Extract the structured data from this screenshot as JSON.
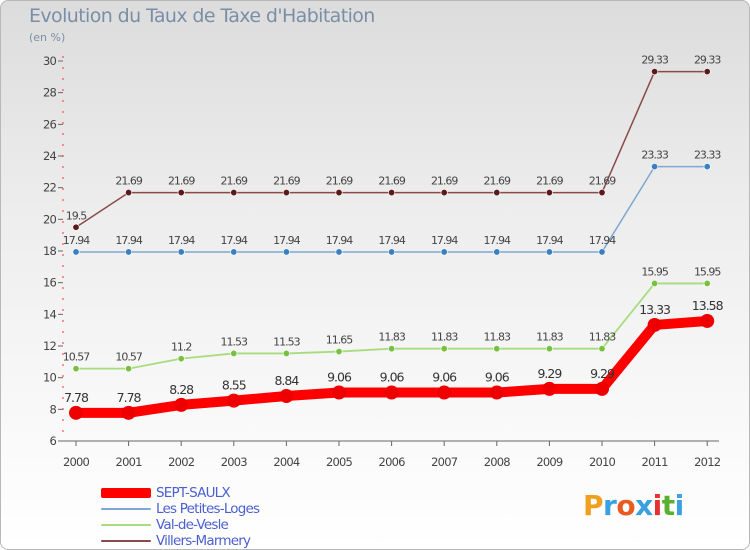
{
  "title": "Evolution du Taux de Taxe d'Habitation",
  "subtitle": "(en %)",
  "logo": {
    "text": "Proxiti",
    "colors": [
      "#f0a020",
      "#3aa0e0",
      "#e85a20",
      "#3aa0e0",
      "#e83030",
      "#5ab030",
      "#3aa0e0"
    ]
  },
  "chart_data": {
    "type": "line",
    "title": "Evolution du Taux de Taxe d'Habitation",
    "ylabel": "(en %)",
    "xlabel": "",
    "categories": [
      "2000",
      "2001",
      "2002",
      "2003",
      "2004",
      "2005",
      "2006",
      "2007",
      "2008",
      "2009",
      "2010",
      "2011",
      "2012"
    ],
    "ylim": [
      6,
      30
    ],
    "yticks": [
      "6",
      "8",
      "10",
      "12",
      "14",
      "16",
      "18",
      "20",
      "22",
      "24",
      "26",
      "28",
      "30"
    ],
    "grid": false,
    "legend_position": "bottom-left",
    "series": [
      {
        "name": "SEPT-SAULX",
        "color": "#ff0000",
        "marker_color": "#ee0000",
        "values": [
          7.78,
          7.78,
          8.28,
          8.55,
          8.84,
          9.06,
          9.06,
          9.06,
          9.06,
          9.29,
          9.29,
          13.33,
          13.58
        ],
        "labels": [
          "7.78",
          "7.78",
          "8.28",
          "8.55",
          "8.84",
          "9.06",
          "9.06",
          "9.06",
          "9.06",
          "9.29",
          "9.29",
          "13.33",
          "13.58"
        ]
      },
      {
        "name": "Les Petites-Loges",
        "color": "#7fa8d0",
        "marker_color": "#3a7fc0",
        "values": [
          17.94,
          17.94,
          17.94,
          17.94,
          17.94,
          17.94,
          17.94,
          17.94,
          17.94,
          17.94,
          17.94,
          23.33,
          23.33
        ],
        "labels": [
          "17.94",
          "17.94",
          "17.94",
          "17.94",
          "17.94",
          "17.94",
          "17.94",
          "17.94",
          "17.94",
          "17.94",
          "17.94",
          "23.33",
          "23.33"
        ]
      },
      {
        "name": "Val-de-Vesle",
        "color": "#a8dc80",
        "marker_color": "#7ac040",
        "values": [
          10.57,
          10.57,
          11.2,
          11.53,
          11.53,
          11.65,
          11.83,
          11.83,
          11.83,
          11.83,
          11.83,
          15.95,
          15.95
        ],
        "labels": [
          "10.57",
          "10.57",
          "11.2",
          "11.53",
          "11.53",
          "11.65",
          "11.83",
          "11.83",
          "11.83",
          "11.83",
          "11.83",
          "15.95",
          "15.95"
        ]
      },
      {
        "name": "Villers-Marmery",
        "color": "#8a4a4a",
        "marker_color": "#5a1a1a",
        "values": [
          19.5,
          21.69,
          21.69,
          21.69,
          21.69,
          21.69,
          21.69,
          21.69,
          21.69,
          21.69,
          21.69,
          29.33,
          29.33
        ],
        "labels": [
          "19.5",
          "21.69",
          "21.69",
          "21.69",
          "21.69",
          "21.69",
          "21.69",
          "21.69",
          "21.69",
          "21.69",
          "21.69",
          "29.33",
          "29.33"
        ]
      }
    ]
  }
}
